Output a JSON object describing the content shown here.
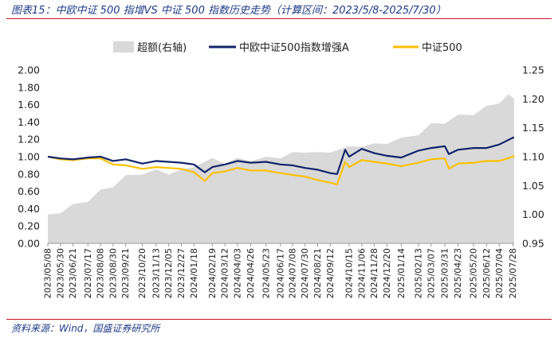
{
  "header": {
    "title": "图表15：中欧中证 500 指增VS 中证 500 指数历史走势（计算区间：2023/5/8-2025/7/30）"
  },
  "footer": {
    "source": "资料来源：Wind，国盛证券研究所"
  },
  "colors": {
    "accent_rule": "#c7151d",
    "title_text": "#1f3b87",
    "excess_area": "#d9d9d9",
    "fund_line": "#12246b",
    "index_line": "#ffc000"
  },
  "chart_data": {
    "type": "line",
    "legend_position": "top",
    "grid": false,
    "left_axis": {
      "ylim": [
        0.0,
        2.0
      ],
      "ticks": [
        "0.00",
        "0.20",
        "0.40",
        "0.60",
        "0.80",
        "1.00",
        "1.20",
        "1.40",
        "1.60",
        "1.80",
        "2.00"
      ]
    },
    "right_axis": {
      "ylim": [
        0.95,
        1.25
      ],
      "ticks": [
        "0.95",
        "1.00",
        "1.05",
        "1.10",
        "1.15",
        "1.20",
        "1.25"
      ]
    },
    "x_tick_labels": [
      "2023/05/08",
      "2023/05/30",
      "2023/06/21",
      "2023/07/17",
      "2023/08/08",
      "2023/08/30",
      "2023/09/21",
      "2023/10/20",
      "2023/11/13",
      "2023/12/05",
      "2023/12/27",
      "2024/01/18",
      "2024/02/19",
      "2024/03/12",
      "2024/04/03",
      "2024/04/26",
      "2024/05/23",
      "2024/06/17",
      "2024/07/08",
      "2024/07/30",
      "2024/08/21",
      "2024/09/12",
      "2024/10/15",
      "2024/11/06",
      "2024/11/28",
      "2024/12/20",
      "2025/01/14",
      "2025/02/13",
      "2025/03/07",
      "2025/03/31",
      "2025/04/23",
      "2025/05/20",
      "2025/06/12",
      "2025/07/04",
      "2025/07/28"
    ],
    "series": [
      {
        "name": "超额(右轴)",
        "type": "area",
        "axis": "right",
        "x": [
          "2023/05/08",
          "2023/05/30",
          "2023/06/21",
          "2023/07/17",
          "2023/08/08",
          "2023/08/30",
          "2023/09/21",
          "2023/10/20",
          "2023/11/13",
          "2023/12/05",
          "2023/12/27",
          "2024/01/18",
          "2024/02/19",
          "2024/03/12",
          "2024/04/03",
          "2024/04/26",
          "2024/05/23",
          "2024/06/17",
          "2024/07/08",
          "2024/07/30",
          "2024/08/21",
          "2024/09/12",
          "2024/10/15",
          "2024/11/06",
          "2024/11/28",
          "2024/12/20",
          "2025/01/14",
          "2025/02/13",
          "2025/03/07",
          "2025/03/31",
          "2025/04/23",
          "2025/05/20",
          "2025/06/12",
          "2025/07/04",
          "2025/07/20",
          "2025/07/30"
        ],
        "values": [
          1.0,
          1.005,
          1.015,
          1.025,
          1.04,
          1.05,
          1.065,
          1.072,
          1.075,
          1.072,
          1.075,
          1.085,
          1.095,
          1.09,
          1.095,
          1.095,
          1.097,
          1.1,
          1.105,
          1.11,
          1.105,
          1.11,
          1.115,
          1.12,
          1.12,
          1.125,
          1.13,
          1.14,
          1.155,
          1.16,
          1.17,
          1.175,
          1.185,
          1.195,
          1.205,
          1.2
        ]
      },
      {
        "name": "中欧中证500指数增强A",
        "type": "line",
        "axis": "left",
        "x": [
          "2023/05/08",
          "2023/05/30",
          "2023/06/21",
          "2023/07/17",
          "2023/08/08",
          "2023/08/30",
          "2023/09/21",
          "2023/10/20",
          "2023/11/13",
          "2023/12/05",
          "2023/12/27",
          "2024/01/18",
          "2024/02/06",
          "2024/02/19",
          "2024/03/12",
          "2024/04/03",
          "2024/04/26",
          "2024/05/23",
          "2024/06/17",
          "2024/07/08",
          "2024/07/30",
          "2024/08/21",
          "2024/09/12",
          "2024/09/24",
          "2024/10/08",
          "2024/10/15",
          "2024/11/06",
          "2024/11/28",
          "2024/12/20",
          "2025/01/14",
          "2025/02/13",
          "2025/03/07",
          "2025/03/31",
          "2025/04/07",
          "2025/04/23",
          "2025/05/20",
          "2025/06/12",
          "2025/07/04",
          "2025/07/28",
          "2025/07/30"
        ],
        "values": [
          1.0,
          0.98,
          0.97,
          0.99,
          1.0,
          0.95,
          0.97,
          0.92,
          0.95,
          0.94,
          0.93,
          0.91,
          0.82,
          0.88,
          0.91,
          0.95,
          0.93,
          0.94,
          0.91,
          0.9,
          0.87,
          0.85,
          0.81,
          0.8,
          1.08,
          1.0,
          1.09,
          1.04,
          1.01,
          0.99,
          1.07,
          1.1,
          1.12,
          1.03,
          1.08,
          1.1,
          1.1,
          1.14,
          1.22,
          1.22
        ]
      },
      {
        "name": "中证500",
        "type": "line",
        "axis": "left",
        "x": [
          "2023/05/08",
          "2023/05/30",
          "2023/06/21",
          "2023/07/17",
          "2023/08/08",
          "2023/08/30",
          "2023/09/21",
          "2023/10/20",
          "2023/11/13",
          "2023/12/05",
          "2023/12/27",
          "2024/01/18",
          "2024/02/06",
          "2024/02/19",
          "2024/03/12",
          "2024/04/03",
          "2024/04/26",
          "2024/05/23",
          "2024/06/17",
          "2024/07/08",
          "2024/07/30",
          "2024/08/21",
          "2024/09/12",
          "2024/09/24",
          "2024/10/08",
          "2024/10/15",
          "2024/11/06",
          "2024/11/28",
          "2024/12/20",
          "2025/01/14",
          "2025/02/13",
          "2025/03/07",
          "2025/03/31",
          "2025/04/07",
          "2025/04/23",
          "2025/05/20",
          "2025/06/12",
          "2025/07/04",
          "2025/07/28",
          "2025/07/30"
        ],
        "values": [
          1.0,
          0.97,
          0.96,
          0.98,
          0.98,
          0.91,
          0.9,
          0.86,
          0.88,
          0.87,
          0.86,
          0.82,
          0.72,
          0.81,
          0.83,
          0.87,
          0.84,
          0.84,
          0.81,
          0.79,
          0.77,
          0.73,
          0.7,
          0.68,
          0.94,
          0.88,
          0.96,
          0.94,
          0.92,
          0.89,
          0.93,
          0.97,
          0.98,
          0.86,
          0.92,
          0.93,
          0.95,
          0.95,
          1.0,
          1.01
        ]
      }
    ]
  }
}
